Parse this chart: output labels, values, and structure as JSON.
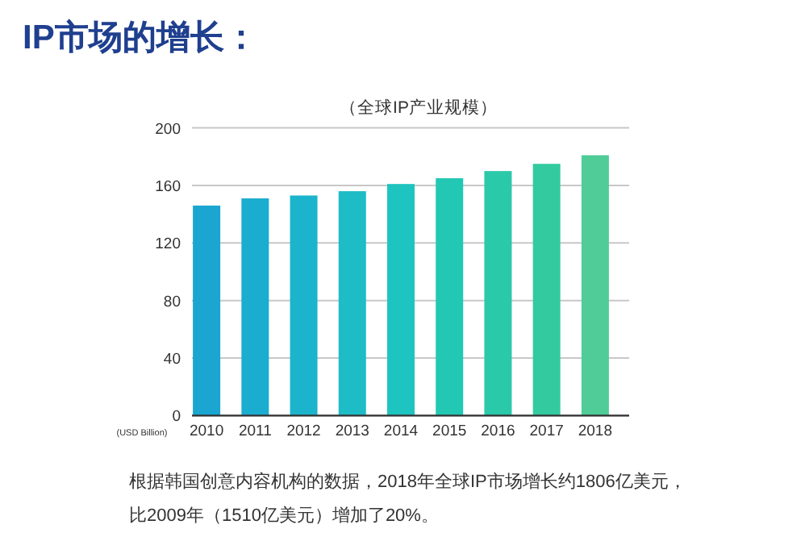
{
  "chart_data": {
    "type": "bar",
    "title": "IP市场的增长：",
    "subtitle": "（全球IP产业规模）",
    "ylabel": "(USD Billion)",
    "categories": [
      "2010",
      "2011",
      "2012",
      "2013",
      "2014",
      "2015",
      "2016",
      "2017",
      "2018"
    ],
    "values": [
      146,
      151,
      153,
      156,
      161,
      165,
      170,
      175,
      181
    ],
    "colors": [
      "#1aa6d0",
      "#1badd0",
      "#1bb4cc",
      "#1dbcc6",
      "#1ec4bf",
      "#22c8b4",
      "#2ac9a9",
      "#33ca9f",
      "#4fcc98"
    ],
    "ylim": [
      0,
      200
    ],
    "yticks": [
      0,
      40,
      80,
      120,
      160,
      200
    ],
    "grid": "y",
    "annotations": [
      "根据韩国创意内容机构的数据，2018年全球IP市场增长约1806亿美元，",
      "比2009年（1510亿美元）增加了20%。"
    ]
  }
}
